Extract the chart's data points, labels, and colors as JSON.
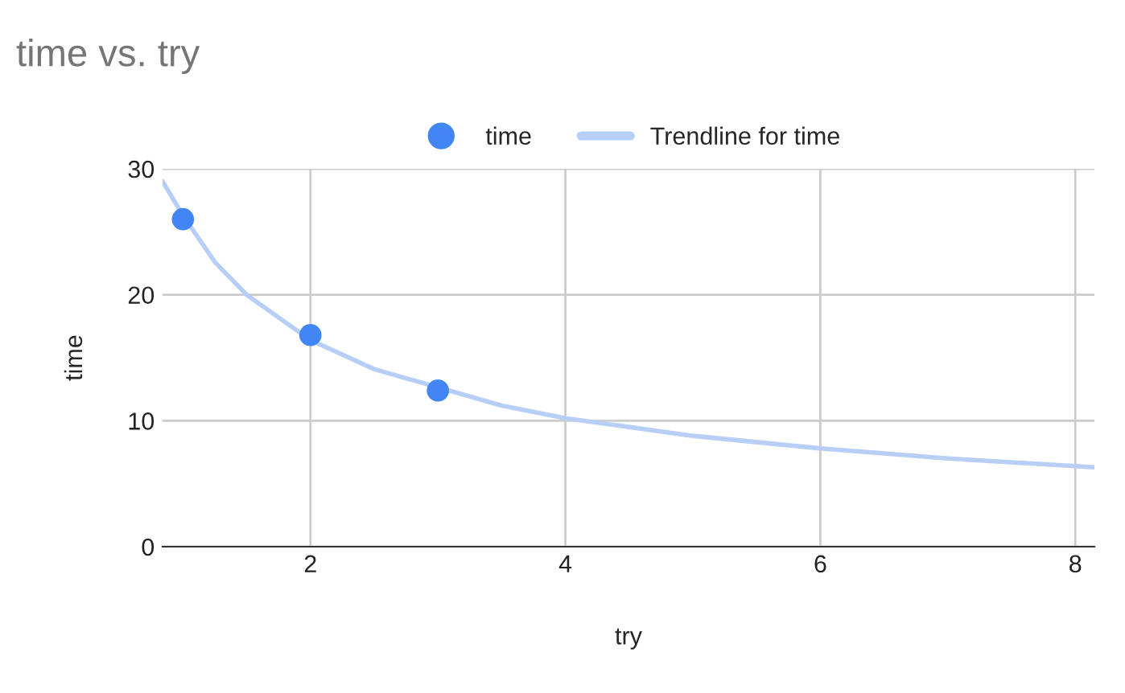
{
  "chart_data": {
    "type": "scatter",
    "title": "time vs. try",
    "xlabel": "try",
    "ylabel": "time",
    "xlim": [
      0.84,
      8.15
    ],
    "xticks": [
      2,
      4,
      6,
      8
    ],
    "ylim": [
      0,
      30
    ],
    "yticks": [
      0,
      10,
      20,
      30
    ],
    "grid": true,
    "legend": "top",
    "series": [
      {
        "name": "time",
        "marker": "circle",
        "color": "#4285f4",
        "x": [
          1,
          2,
          3
        ],
        "values": [
          26,
          16.8,
          12.4
        ]
      },
      {
        "name": "Trendline for time",
        "type": "line",
        "color": "#b7cef7",
        "marker": "none",
        "x": [
          0.84,
          1,
          1.25,
          1.5,
          2,
          2.5,
          3.5,
          4,
          5,
          6,
          7,
          8,
          8.15
        ],
        "values": [
          29,
          26.3,
          22.6,
          20.0,
          16.4,
          14.1,
          11.2,
          10.2,
          8.8,
          7.8,
          7.0,
          6.4,
          6.3
        ]
      }
    ]
  }
}
